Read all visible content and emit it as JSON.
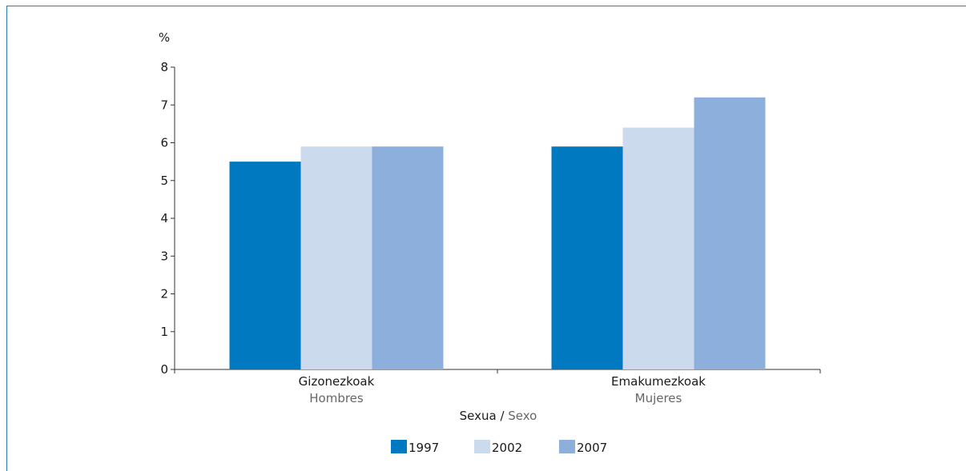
{
  "chart_data": {
    "type": "bar",
    "categories": [
      {
        "label": "Gizonezkoak",
        "sublabel": "Hombres"
      },
      {
        "label": "Emakumezkoak",
        "sublabel": "Mujeres"
      }
    ],
    "series": [
      {
        "name": "1997",
        "color": "#0079c1",
        "values": [
          5.5,
          5.9
        ]
      },
      {
        "name": "2002",
        "color": "#cbdbed",
        "values": [
          5.9,
          6.4
        ]
      },
      {
        "name": "2007",
        "color": "#8dafdc",
        "values": [
          5.9,
          7.2
        ]
      }
    ],
    "ylabel": "%",
    "xlabel_main": "Sexua",
    "xlabel_sep": " / ",
    "xlabel_sub": "Sexo",
    "ylim": [
      0,
      8
    ],
    "yticks": [
      "0",
      "1",
      "2",
      "3",
      "4",
      "5",
      "6",
      "7",
      "8"
    ],
    "grid": false,
    "legend_position": "bottom"
  }
}
